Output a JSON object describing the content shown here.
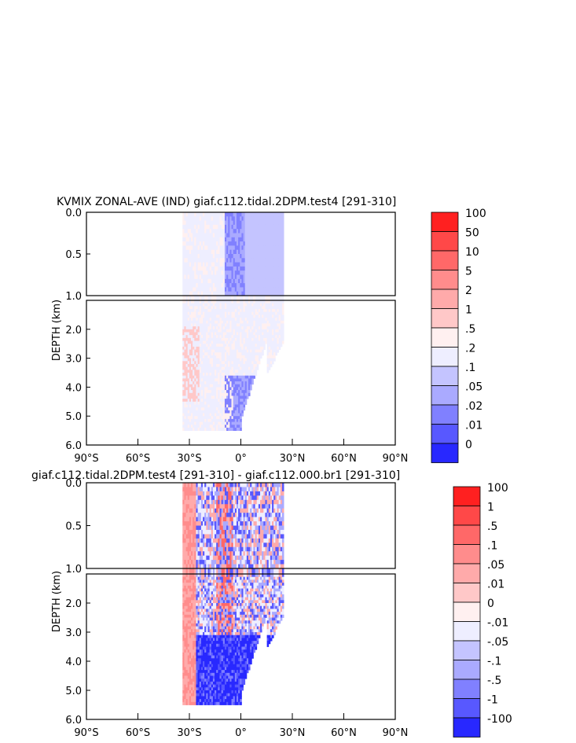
{
  "chart_data": [
    {
      "type": "heatmap",
      "title": "KVMIX ZONAL-AVE (IND) giaf.c112.tidal.2DPM.test4 [291-310]",
      "xlabel": "",
      "ylabel": "DEPTH (km)",
      "x_ticks": [
        "90°S",
        "60°S",
        "30°S",
        "0°",
        "30°N",
        "60°N",
        "90°N"
      ],
      "y_ticks_upper": [
        "0.0",
        "0.5",
        "1.0"
      ],
      "y_ticks_lower": [
        "2.0",
        "3.0",
        "4.0",
        "5.0",
        "6.0"
      ],
      "xlim": [
        -90,
        90
      ],
      "ylim": [
        6.0,
        0.0
      ],
      "data_extent": {
        "lat_min": -34,
        "lat_max": 25,
        "depth_max": 5.5
      },
      "colorbar_labels": [
        "100",
        "50",
        "10",
        "5",
        "2",
        "1",
        ".5",
        ".2",
        ".1",
        ".05",
        ".02",
        ".01",
        "0"
      ],
      "colorbar_colors": [
        "#ff2020",
        "#ff4848",
        "#ff6868",
        "#ff8c8c",
        "#ffaaaa",
        "#ffc8c8",
        "#fff0f0",
        "#eeeeff",
        "#c4c4ff",
        "#aaaaff",
        "#8080ff",
        "#5858ff",
        "#2828ff"
      ],
      "series": [
        {
          "name": "",
          "pattern": "background .2 to .5 (light lavender); .05–.02 band near 0°–10°S upper 1 km; patches of 1 to 2 near 30°S between 2.5 and 4.5 km"
        }
      ]
    },
    {
      "type": "heatmap",
      "title": "giaf.c112.tidal.2DPM.test4 [291-310] - giaf.c112.000.br1 [291-310]",
      "xlabel": "",
      "ylabel": "DEPTH (km)",
      "x_ticks": [
        "90°S",
        "60°S",
        "30°S",
        "0°",
        "30°N",
        "60°N",
        "90°N"
      ],
      "y_ticks_upper": [
        "0.0",
        "0.5",
        "1.0"
      ],
      "y_ticks_lower": [
        "2.0",
        "3.0",
        "4.0",
        "5.0",
        "6.0"
      ],
      "xlim": [
        -90,
        90
      ],
      "ylim": [
        6.0,
        0.0
      ],
      "data_extent": {
        "lat_min": -34,
        "lat_max": 25,
        "depth_max": 5.5
      },
      "colorbar_labels": [
        "100",
        "1",
        ".5",
        ".1",
        ".05",
        ".01",
        "0",
        "-.01",
        "-.05",
        "-.1",
        "-.5",
        "-1",
        "-100"
      ],
      "colorbar_colors": [
        "#ff2020",
        "#ff4848",
        "#ff6868",
        "#ff8c8c",
        "#ffaaaa",
        "#ffc8c8",
        "#fff0f0",
        "#eeeeff",
        "#c4c4ff",
        "#aaaaff",
        "#8080ff",
        "#5858ff",
        "#2828ff"
      ],
      "series": [
        {
          "name": "",
          "pattern": "mostly strongly negative (-1 to -100) below 3 km; positive .05 to 1 patches near 30°S and 10°S"
        }
      ]
    }
  ]
}
